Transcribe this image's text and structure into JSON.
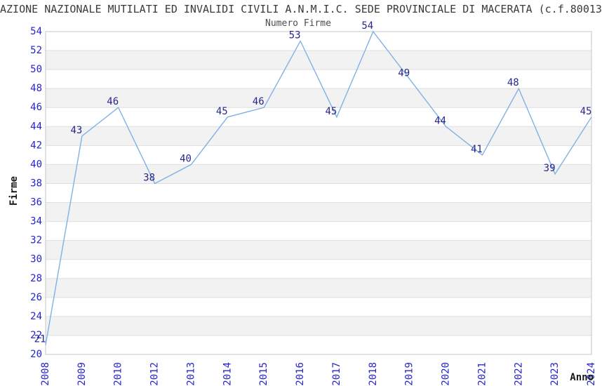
{
  "chart_data": {
    "type": "line",
    "title": "AZIONE NAZIONALE MUTILATI ED INVALIDI CIVILI A.N.M.I.C. SEDE PROVINCIALE DI MACERATA (c.f.80013",
    "subtitle": "Numero Firme",
    "xlabel": "Anno",
    "ylabel": "Firme",
    "categories": [
      "2008",
      "2009",
      "2010",
      "2012",
      "2013",
      "2014",
      "2015",
      "2016",
      "2017",
      "2018",
      "2019",
      "2020",
      "2021",
      "2022",
      "2023",
      "2024"
    ],
    "values": [
      21,
      43,
      46,
      38,
      40,
      45,
      46,
      53,
      45,
      54,
      49,
      44,
      41,
      48,
      39,
      45
    ],
    "ylim": [
      20,
      54
    ],
    "ytick_step": 2,
    "grid": true,
    "legend": "none",
    "band_alternating": true,
    "colors": {
      "line": "#7FB2E5",
      "point_label": "#26268C",
      "tick_label": "#2424CD",
      "band": "#F2F2F2",
      "gridline": "#DFDFDF",
      "border": "#C6C6C6",
      "title": "#3A3A3A",
      "subtitle": "#4D4D4D",
      "axis_label": "#1A1A1A",
      "background": "#FFFFFF"
    }
  }
}
